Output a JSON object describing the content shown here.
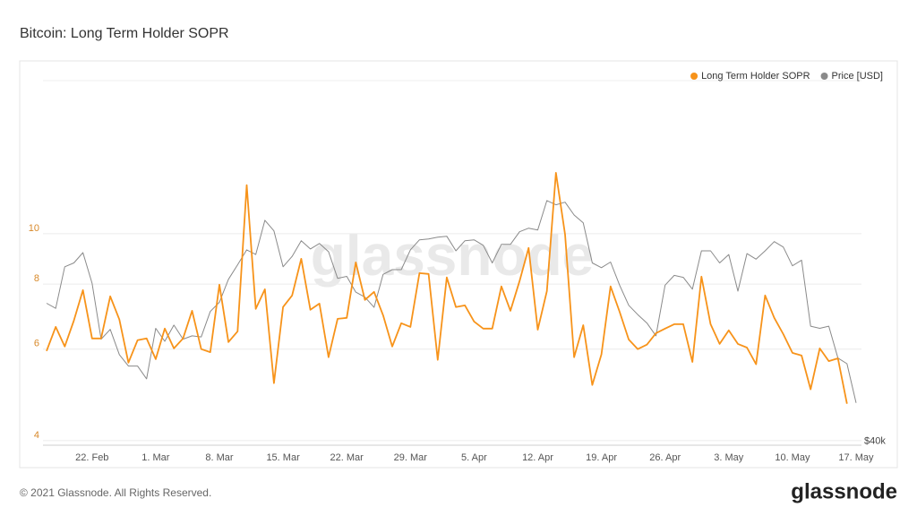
{
  "header": {
    "title": "Bitcoin: Long Term Holder SOPR"
  },
  "chart_data": {
    "type": "line",
    "watermark": "glassnode",
    "x": [
      "17. Feb",
      "18. Feb",
      "19. Feb",
      "20. Feb",
      "21. Feb",
      "22. Feb",
      "23. Feb",
      "24. Feb",
      "25. Feb",
      "26. Feb",
      "27. Feb",
      "28. Feb",
      "1. Mar",
      "2. Mar",
      "3. Mar",
      "4. Mar",
      "5. Mar",
      "6. Mar",
      "7. Mar",
      "8. Mar",
      "9. Mar",
      "10. Mar",
      "11. Mar",
      "12. Mar",
      "13. Mar",
      "14. Mar",
      "15. Mar",
      "16. Mar",
      "17. Mar",
      "18. Mar",
      "19. Mar",
      "20. Mar",
      "21. Mar",
      "22. Mar",
      "23. Mar",
      "24. Mar",
      "25. Mar",
      "26. Mar",
      "27. Mar",
      "28. Mar",
      "29. Mar",
      "30. Mar",
      "31. Mar",
      "1. Apr",
      "2. Apr",
      "3. Apr",
      "4. Apr",
      "5. Apr",
      "6. Apr",
      "7. Apr",
      "8. Apr",
      "9. Apr",
      "10. Apr",
      "11. Apr",
      "12. Apr",
      "13. Apr",
      "14. Apr",
      "15. Apr",
      "16. Apr",
      "17. Apr",
      "18. Apr",
      "19. Apr",
      "20. Apr",
      "21. Apr",
      "22. Apr",
      "23. Apr",
      "24. Apr",
      "25. Apr",
      "26. Apr",
      "27. Apr",
      "28. Apr",
      "29. Apr",
      "30. Apr",
      "1. May",
      "2. May",
      "3. May",
      "4. May",
      "5. May",
      "6. May",
      "7. May",
      "8. May",
      "9. May",
      "10. May",
      "11. May",
      "12. May",
      "13. May",
      "14. May",
      "15. May",
      "16. May",
      "17. May"
    ],
    "xticks": [
      "22. Feb",
      "1. Mar",
      "8. Mar",
      "15. Mar",
      "22. Mar",
      "29. Mar",
      "5. Apr",
      "12. Apr",
      "19. Apr",
      "26. Apr",
      "3. May",
      "10. May",
      "17. May"
    ],
    "series": [
      {
        "name": "Long Term Holder SOPR",
        "color": "#f7931a",
        "axis": "y",
        "values": [
          5.95,
          6.62,
          6.07,
          6.81,
          7.79,
          6.29,
          6.29,
          7.58,
          6.84,
          5.65,
          6.24,
          6.29,
          5.74,
          6.57,
          6.02,
          6.29,
          7.11,
          6.0,
          5.92,
          7.98,
          6.19,
          6.49,
          12.4,
          7.17,
          7.82,
          5.16,
          7.23,
          7.61,
          8.95,
          7.14,
          7.34,
          5.79,
          6.86,
          6.89,
          8.81,
          7.46,
          7.73,
          6.97,
          6.07,
          6.73,
          6.62,
          8.4,
          8.37,
          5.72,
          8.24,
          7.23,
          7.28,
          6.78,
          6.57,
          6.57,
          7.92,
          7.11,
          8.11,
          9.39,
          6.54,
          7.76,
          13.1,
          9.97,
          5.79,
          6.67,
          5.12,
          5.86,
          7.92,
          7.08,
          6.26,
          6.0,
          6.12,
          6.44,
          6.57,
          6.7,
          6.7,
          5.67,
          8.27,
          6.7,
          6.14,
          6.52,
          6.14,
          6.04,
          5.61,
          7.61,
          6.89,
          6.41,
          5.9,
          5.83,
          5.02,
          6.02,
          5.69,
          5.76,
          4.71,
          null
        ]
      },
      {
        "name": "Price [USD]",
        "color": "#8a8a8a",
        "axis": "y2",
        "values": [
          51900,
          51400,
          55600,
          56000,
          57100,
          53900,
          48500,
          49400,
          47100,
          46100,
          46100,
          45000,
          49500,
          48300,
          49800,
          48500,
          48800,
          48700,
          51100,
          52000,
          54300,
          55800,
          57400,
          56900,
          60700,
          59500,
          55600,
          56700,
          58400,
          57500,
          58100,
          57200,
          54400,
          54600,
          53000,
          52500,
          51500,
          54800,
          55300,
          55300,
          57400,
          58500,
          58600,
          58800,
          58900,
          57300,
          58400,
          58500,
          57900,
          56000,
          58000,
          58000,
          59400,
          59800,
          59600,
          63000,
          62500,
          62800,
          61300,
          60400,
          56000,
          55500,
          56100,
          53700,
          51700,
          50800,
          50000,
          48800,
          53700,
          54700,
          54500,
          53300,
          57300,
          57300,
          56000,
          56900,
          53100,
          57000,
          56400,
          57300,
          58300,
          57700,
          55700,
          56300,
          49700,
          49500,
          49700,
          46800,
          46300,
          43000
        ]
      }
    ],
    "ylim": [
      3.92,
      19.7
    ],
    "yticks": [
      4,
      6,
      8,
      10
    ],
    "ylog": true,
    "y2lim": [
      39700,
      79000
    ],
    "y2ticks": [
      {
        "value": 40000,
        "label": "$40k"
      }
    ],
    "y2log": true,
    "grid": true,
    "legend": "top-right"
  },
  "footer": {
    "copyright": "© 2021 Glassnode. All Rights Reserved.",
    "brand": "glassnode"
  }
}
